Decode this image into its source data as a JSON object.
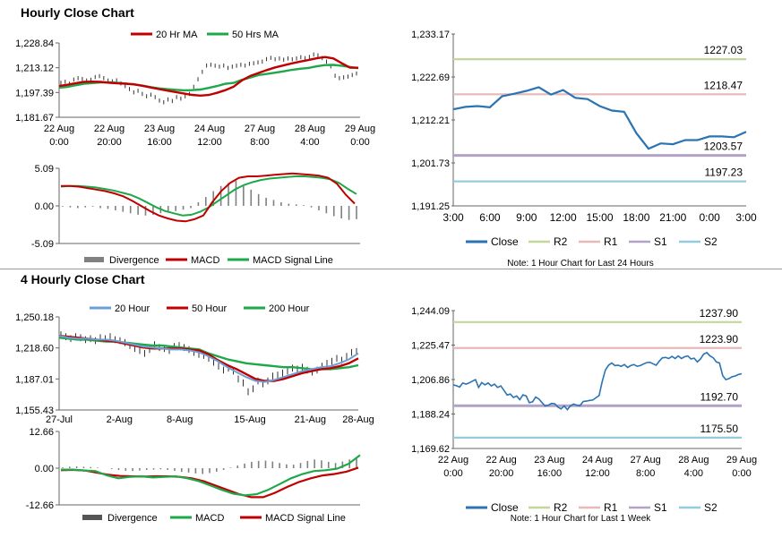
{
  "colors": {
    "ma20": "#c00000",
    "ma50": "#1fa84a",
    "close": "#2b73b3",
    "r2": "#c3d69b",
    "r1": "#e6b9b8",
    "s1": "#b3a2c7",
    "s2": "#93cddd",
    "divergence": "#808080",
    "red": "#c00000",
    "green": "#1fa84a",
    "blue": "#6aa0d6"
  },
  "sections": {
    "hourly_title": "Hourly Close Chart",
    "four_hourly_title": "4 Hourly Close Chart"
  },
  "chart_data": [
    {
      "id": "hourly_price",
      "type": "line",
      "legend": [
        "20 Hr MA",
        "50 Hrs MA"
      ],
      "y_ticks": [
        "1,228.84",
        "1,213.12",
        "1,197.39",
        "1,181.67"
      ],
      "ylim": [
        1181.67,
        1228.84
      ],
      "x_ticks": [
        [
          "22 Aug",
          "0:00"
        ],
        [
          "22 Aug",
          "20:00"
        ],
        [
          "23 Aug",
          "16:00"
        ],
        [
          "24 Aug",
          "12:00"
        ],
        [
          "27 Aug",
          "8:00"
        ],
        [
          "28 Aug",
          "4:00"
        ],
        [
          "29 Aug",
          "0:00"
        ]
      ],
      "x_tick_pos": [
        0,
        0.1667,
        0.3333,
        0.5,
        0.6667,
        0.8333,
        1
      ],
      "series": [
        {
          "name": "Close",
          "style": "bars",
          "values": [
            1203.5,
            1204.2,
            1203.0,
            1205.6,
            1206.5,
            1206.0,
            1205.0,
            1205.5,
            1207.2,
            1207.8,
            1206.5,
            1205.0,
            1204.5,
            1205.1,
            1203.2,
            1201.5,
            1199.6,
            1197.5,
            1198.5,
            1196.5,
            1195.0,
            1196.0,
            1194.5,
            1192.3,
            1191.2,
            1193.0,
            1192.0,
            1194.5,
            1193.5,
            1195.0,
            1196.5,
            1201.0,
            1205.8,
            1210.5,
            1214.5,
            1215.0,
            1214.4,
            1213.8,
            1214.5,
            1213.0,
            1213.8,
            1214.4,
            1215.0,
            1214.5,
            1215.6,
            1216.0,
            1216.5,
            1217.0,
            1218.6,
            1219.4,
            1218.5,
            1219.0,
            1218.2,
            1219.0,
            1218.5,
            1219.0,
            1219.8,
            1219.2,
            1220.0,
            1221.5,
            1221.0,
            1219.3,
            1217.0,
            1214.0,
            1208.0,
            1206.5,
            1207.0,
            1207.5,
            1208.5,
            1209.5
          ]
        },
        {
          "name": "20 Hr MA",
          "values": [
            1201.5,
            1202.3,
            1203.3,
            1204.1,
            1204.3,
            1204.1,
            1203.6,
            1203.2,
            1203.0,
            1202.6,
            1201.7,
            1200.6,
            1199.6,
            1198.6,
            1197.7,
            1196.8,
            1195.9,
            1195.4,
            1195.8,
            1197.2,
            1198.9,
            1201.1,
            1205.1,
            1207.9,
            1209.8,
            1211.6,
            1213.3,
            1214.6,
            1215.9,
            1217.0,
            1218.0,
            1219.1,
            1219.9,
            1219.0,
            1216.0,
            1213.2,
            1213.1
          ]
        },
        {
          "name": "50 Hrs MA",
          "values": [
            1200.5,
            1201.0,
            1202.0,
            1202.9,
            1203.4,
            1203.8,
            1203.9,
            1203.6,
            1203.1,
            1202.5,
            1201.8,
            1200.8,
            1200.0,
            1199.5,
            1199.1,
            1198.8,
            1198.9,
            1199.3,
            1200.3,
            1201.5,
            1202.9,
            1203.5,
            1205.4,
            1206.9,
            1208.5,
            1209.2,
            1210.0,
            1210.8,
            1211.8,
            1212.5,
            1213.0,
            1214.0,
            1214.8,
            1214.9,
            1214.4,
            1213.6,
            1212.8
          ]
        }
      ]
    },
    {
      "id": "hourly_macd",
      "type": "line",
      "legend": [
        "Divergence",
        "MACD",
        "MACD Signal Line"
      ],
      "y_ticks": [
        "5.09",
        "0.00",
        "-5.09"
      ],
      "ylim": [
        -5.09,
        5.09
      ],
      "series": [
        {
          "name": "Divergence",
          "style": "bars",
          "values": [
            -0.1,
            -0.2,
            -0.3,
            -0.2,
            -0.1,
            -0.3,
            -0.4,
            -0.6,
            -0.8,
            -1.0,
            -1.2,
            -1.3,
            -1.2,
            -1.0,
            -0.9,
            -0.7,
            -0.5,
            -0.3,
            0.5,
            1.2,
            2.0,
            2.7,
            3.1,
            3.4,
            2.7,
            2.2,
            1.6,
            1.1,
            0.8,
            0.5,
            0.3,
            0.2,
            0.1,
            -0.2,
            -0.6,
            -1.0,
            -1.4,
            -1.7,
            -1.9,
            -1.8
          ]
        },
        {
          "name": "MACD",
          "values": [
            2.7,
            2.7,
            2.6,
            2.4,
            2.2,
            2.0,
            1.7,
            1.3,
            0.7,
            0.0,
            -0.7,
            -1.3,
            -1.7,
            -2.0,
            -2.1,
            -1.8,
            -1.3,
            0.5,
            2.0,
            3.1,
            3.8,
            4.0,
            4.0,
            4.1,
            4.2,
            4.3,
            4.4,
            4.3,
            4.2,
            4.1,
            3.8,
            3.0,
            1.5,
            0.3
          ]
        },
        {
          "name": "MACD Signal Line",
          "values": [
            2.6,
            2.7,
            2.7,
            2.6,
            2.5,
            2.3,
            2.1,
            1.8,
            1.5,
            1.0,
            0.4,
            -0.2,
            -0.7,
            -1.0,
            -1.3,
            -1.2,
            -0.8,
            -0.2,
            0.6,
            1.4,
            2.2,
            2.8,
            3.2,
            3.5,
            3.7,
            3.8,
            3.9,
            4.0,
            4.0,
            3.9,
            3.8,
            3.6,
            3.1,
            2.3,
            1.6
          ]
        }
      ]
    },
    {
      "id": "hourly_close_24h",
      "type": "line",
      "legend": [
        "Close",
        "R2",
        "R1",
        "S1",
        "S2"
      ],
      "y_ticks": [
        "1,233.17",
        "1,222.69",
        "1,212.21",
        "1,201.73",
        "1,191.25"
      ],
      "ylim": [
        1191.25,
        1233.17
      ],
      "x_ticks": [
        "3:00",
        "6:00",
        "9:00",
        "12:00",
        "15:00",
        "18:00",
        "21:00",
        "0:00",
        "3:00"
      ],
      "levels": [
        {
          "name": "R2",
          "value": 1227.03,
          "label": "1227.03"
        },
        {
          "name": "R1",
          "value": 1218.47,
          "label": "1218.47"
        },
        {
          "name": "S1",
          "value": 1203.57,
          "label": "1203.57"
        },
        {
          "name": "S2",
          "value": 1197.23,
          "label": "1197.23"
        }
      ],
      "series": [
        {
          "name": "Close",
          "values": [
            1214.8,
            1215.4,
            1215.6,
            1215.3,
            1218.0,
            1218.6,
            1219.3,
            1220.2,
            1218.4,
            1219.5,
            1217.6,
            1217.3,
            1215.6,
            1214.5,
            1214.2,
            1209.0,
            1205.2,
            1206.5,
            1206.3,
            1207.3,
            1207.3,
            1208.2,
            1208.2,
            1208.0,
            1209.3
          ]
        }
      ],
      "note": "Note: 1 Hour Chart for Last 24 Hours"
    },
    {
      "id": "four_hourly_price",
      "type": "line",
      "legend": [
        "20 Hour",
        "50 Hour",
        "200 Hour"
      ],
      "y_ticks": [
        "1,250.18",
        "1,218.60",
        "1,187.01",
        "1,155.43"
      ],
      "ylim": [
        1155.43,
        1250.18
      ],
      "x_ticks": [
        "27-Jul",
        "2-Aug",
        "8-Aug",
        "15-Aug",
        "21-Aug",
        "28-Aug"
      ],
      "x_tick_pos": [
        0,
        0.2015,
        0.4031,
        0.6377,
        0.8393,
        1.0
      ],
      "series": [
        {
          "name": "Close",
          "style": "bars",
          "values": [
            1232,
            1230,
            1228,
            1230,
            1229,
            1227,
            1228,
            1226,
            1229,
            1228,
            1230,
            1227,
            1226,
            1224,
            1221,
            1218,
            1216,
            1213,
            1217,
            1222,
            1219,
            1218,
            1216,
            1220,
            1221,
            1219,
            1217,
            1214,
            1212,
            1211,
            1208,
            1204,
            1200,
            1196,
            1198,
            1195,
            1187,
            1183,
            1174,
            1177,
            1185,
            1182,
            1185,
            1190,
            1191,
            1193,
            1195,
            1198,
            1197,
            1199,
            1196,
            1194,
            1196,
            1200,
            1203,
            1205,
            1208,
            1206,
            1210,
            1214,
            1215
          ]
        },
        {
          "name": "20 Hour",
          "values": [
            1231,
            1229,
            1228,
            1228,
            1227,
            1227,
            1226,
            1224,
            1222,
            1220,
            1219,
            1218,
            1217,
            1217,
            1216,
            1214,
            1210,
            1205,
            1199,
            1194,
            1189,
            1185,
            1184,
            1186,
            1189,
            1192,
            1195,
            1197,
            1199,
            1200,
            1203,
            1207,
            1213
          ]
        },
        {
          "name": "50 Hour",
          "values": [
            1231,
            1230,
            1229,
            1228,
            1227,
            1226,
            1225,
            1223,
            1221,
            1219,
            1218,
            1218,
            1218,
            1218,
            1217,
            1216,
            1212,
            1206,
            1201,
            1197,
            1192,
            1187,
            1185,
            1185,
            1187,
            1190,
            1193,
            1195,
            1197,
            1198,
            1200,
            1203,
            1208
          ]
        },
        {
          "name": "200 Hour",
          "values": [
            1229,
            1228,
            1227,
            1227,
            1226,
            1225,
            1225,
            1224,
            1223,
            1222,
            1221,
            1221,
            1220,
            1219,
            1218,
            1217,
            1213,
            1210,
            1207,
            1205,
            1203,
            1202,
            1201,
            1200,
            1199,
            1199,
            1198,
            1197,
            1197,
            1197,
            1198,
            1199,
            1201
          ]
        }
      ]
    },
    {
      "id": "four_hourly_macd",
      "type": "line",
      "legend": [
        "Divergence",
        "MACD",
        "MACD Signal Line"
      ],
      "y_ticks": [
        "12.66",
        "0.00",
        "-12.66"
      ],
      "ylim": [
        -12.66,
        12.66
      ],
      "series": [
        {
          "name": "Divergence",
          "style": "bars",
          "values": [
            0.3,
            0.5,
            0.6,
            0.5,
            0.4,
            0.2,
            0.0,
            -0.3,
            -0.6,
            -0.9,
            -1.0,
            -0.8,
            -0.6,
            -0.5,
            -0.4,
            -0.6,
            -0.9,
            -1.3,
            -1.5,
            -1.8,
            -2.0,
            -1.7,
            -1.2,
            -0.6,
            0.2,
            0.9,
            1.6,
            2.2,
            2.5,
            2.6,
            2.3,
            1.8,
            1.3,
            1.2,
            1.8,
            2.5,
            3.0,
            2.7,
            2.2,
            1.8,
            2.3,
            3.0,
            3.3
          ]
        },
        {
          "name": "MACD",
          "values": [
            -0.5,
            -0.5,
            -0.8,
            -1.0,
            -2.5,
            -3.5,
            -3.0,
            -2.8,
            -3.2,
            -3.0,
            -2.8,
            -3.5,
            -4.5,
            -6.0,
            -7.5,
            -8.8,
            -9.4,
            -9.0,
            -7.5,
            -5.5,
            -3.5,
            -2.0,
            -1.0,
            -0.7,
            -0.2,
            1.5,
            4.5
          ]
        },
        {
          "name": "MACD Signal Line",
          "values": [
            -0.7,
            -0.6,
            -0.8,
            -1.5,
            -2.3,
            -2.7,
            -2.8,
            -2.9,
            -2.8,
            -2.8,
            -3.0,
            -3.5,
            -4.5,
            -6.0,
            -7.5,
            -9.0,
            -10.0,
            -10.0,
            -8.5,
            -6.5,
            -4.8,
            -3.5,
            -2.5,
            -2.0,
            -1.2,
            0.2
          ]
        }
      ]
    },
    {
      "id": "four_hourly_close",
      "type": "line",
      "legend": [
        "Close",
        "R2",
        "R1",
        "S1",
        "S2"
      ],
      "y_ticks": [
        "1,244.09",
        "1,225.47",
        "1,206.86",
        "1,188.24",
        "1,169.62"
      ],
      "ylim": [
        1169.62,
        1244.09
      ],
      "x_ticks": [
        [
          "22 Aug",
          "0:00"
        ],
        [
          "22 Aug",
          "20:00"
        ],
        [
          "23 Aug",
          "16:00"
        ],
        [
          "24 Aug",
          "12:00"
        ],
        [
          "27 Aug",
          "8:00"
        ],
        [
          "28 Aug",
          "4:00"
        ],
        [
          "29 Aug",
          "0:00"
        ]
      ],
      "levels": [
        {
          "name": "R2",
          "value": 1237.9,
          "label": "1237.90"
        },
        {
          "name": "R1",
          "value": 1223.9,
          "label": "1223.90"
        },
        {
          "name": "S1",
          "value": 1192.7,
          "label": "1192.70"
        },
        {
          "name": "S2",
          "value": 1175.5,
          "label": "1175.50"
        }
      ],
      "series": [
        {
          "name": "Close",
          "values": [
            1204,
            1203.5,
            1202.8,
            1205,
            1204.4,
            1205,
            1206,
            1206.8,
            1202.6,
            1205.2,
            1204,
            1205,
            1203.4,
            1204.4,
            1202.6,
            1203.4,
            1201,
            1198.5,
            1199,
            1197.2,
            1198,
            1196,
            1198.6,
            1198,
            1194.4,
            1194.8,
            1197.4,
            1196.4,
            1194.4,
            1192.6,
            1193,
            1194,
            1193.8,
            1192,
            1191,
            1192.6,
            1190.6,
            1192.8,
            1193.6,
            1193,
            1192.8,
            1195,
            1195.2,
            1195.6,
            1195.8,
            1197,
            1198.2,
            1205.8,
            1212,
            1214.6,
            1215.8,
            1214.4,
            1214.6,
            1214,
            1215,
            1213.4,
            1214.4,
            1215,
            1214,
            1214.4,
            1215.2,
            1216,
            1216.2,
            1215.4,
            1214.6,
            1216.8,
            1218.6,
            1218.8,
            1218.2,
            1219.4,
            1218.2,
            1219.6,
            1218.2,
            1219.2,
            1219.6,
            1218,
            1218.4,
            1216.4,
            1218,
            1220.6,
            1221.4,
            1219.6,
            1218.6,
            1216.4,
            1215.8,
            1209,
            1206.8,
            1207.4,
            1208.4,
            1208.8,
            1209.6,
            1210
          ]
        }
      ],
      "note": "Note: 1 Hour Chart for Last 1 Week"
    }
  ]
}
